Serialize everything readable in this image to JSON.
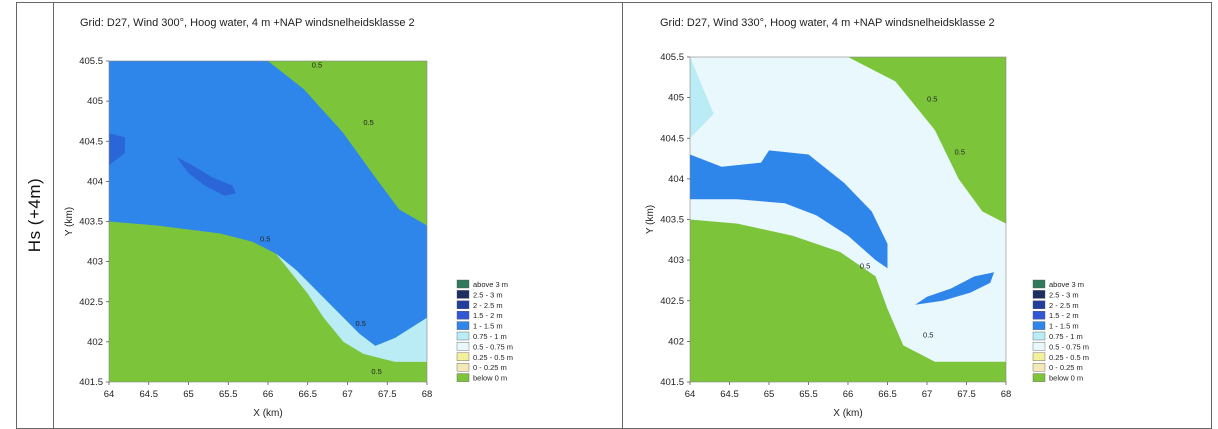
{
  "row_label": "Hs (+4m)",
  "legend_colors": [
    "#2e7a5a",
    "#1c2f5e",
    "#233f9e",
    "#2f57d6",
    "#2f86ea",
    "#b9ecf5",
    "#e9f8fc",
    "#f2f09a",
    "#f2e8b8",
    "#7cc53a"
  ],
  "legend_labels": [
    "above 3 m",
    "2.5 - 3 m",
    "2 - 2.5 m",
    "1.5 - 2 m",
    "1 - 1.5 m",
    "0.75 - 1 m",
    "0.5 - 0.75 m",
    "0.25 - 0.5 m",
    "0 - 0.25 m",
    "below 0 m"
  ],
  "chart_data": [
    {
      "type": "heatmap",
      "title": "Grid: D27, Wind 300°, Hoog water, 4 m +NAP windsnelheidsklasse 2",
      "xlabel": "X (km)",
      "ylabel": "Y (km)",
      "xlim": [
        64,
        68
      ],
      "ylim": [
        401.5,
        405.5
      ],
      "xticks": [
        "64",
        "64.5",
        "65",
        "65.5",
        "66",
        "66.5",
        "67",
        "67.5",
        "68"
      ],
      "yticks": [
        "401.5",
        "402",
        "402.5",
        "403",
        "403.5",
        "404",
        "404.5",
        "405",
        "405.5"
      ],
      "regions": [
        {
          "class": "1 - 1.5 m",
          "color": "#2f86ea",
          "points": [
            [
              64,
              405.5
            ],
            [
              66.0,
              405.5
            ],
            [
              66.45,
              405.15
            ],
            [
              66.95,
              404.6
            ],
            [
              67.35,
              404.05
            ],
            [
              67.65,
              403.65
            ],
            [
              68,
              403.45
            ],
            [
              68,
              402.3
            ],
            [
              67.6,
              402.05
            ],
            [
              67.35,
              401.95
            ],
            [
              67.15,
              402.1
            ],
            [
              67.0,
              402.25
            ],
            [
              66.6,
              402.65
            ],
            [
              66.35,
              402.9
            ],
            [
              66.1,
              403.1
            ],
            [
              65.8,
              403.25
            ],
            [
              65.4,
              403.35
            ],
            [
              65.0,
              403.4
            ],
            [
              64.6,
              403.45
            ],
            [
              64.0,
              403.5
            ]
          ]
        },
        {
          "class": "0.75 - 1 m",
          "color": "#b9ecf5",
          "points": [
            [
              66.1,
              403.1
            ],
            [
              66.35,
              402.9
            ],
            [
              66.6,
              402.65
            ],
            [
              67.0,
              402.25
            ],
            [
              67.15,
              402.1
            ],
            [
              67.35,
              401.95
            ],
            [
              67.6,
              402.05
            ],
            [
              68,
              402.3
            ],
            [
              68,
              401.75
            ],
            [
              67.6,
              401.75
            ],
            [
              67.2,
              401.85
            ],
            [
              66.95,
              402.0
            ],
            [
              66.7,
              402.3
            ],
            [
              66.5,
              402.6
            ]
          ]
        },
        {
          "class": "1.5 - 2 m",
          "color": "#2a66d8",
          "points": [
            [
              64.85,
              404.3
            ],
            [
              65.05,
              404.2
            ],
            [
              65.3,
              404.05
            ],
            [
              65.55,
              403.95
            ],
            [
              65.6,
              403.85
            ],
            [
              65.45,
              403.82
            ],
            [
              65.2,
              403.95
            ],
            [
              65.0,
              404.1
            ]
          ]
        },
        {
          "class": "1.5 - 2 m",
          "color": "#2a66d8",
          "points": [
            [
              64,
              404.6
            ],
            [
              64.2,
              404.55
            ],
            [
              64.2,
              404.35
            ],
            [
              64,
              404.2
            ]
          ]
        }
      ],
      "contour_labels": [
        {
          "text": "0.5",
          "x": 66.55,
          "y": 405.42
        },
        {
          "text": "0.5",
          "x": 67.2,
          "y": 404.7
        },
        {
          "text": "0.5",
          "x": 65.9,
          "y": 403.25
        },
        {
          "text": "0.5",
          "x": 67.1,
          "y": 402.2
        },
        {
          "text": "0.5",
          "x": 67.3,
          "y": 401.6
        }
      ]
    },
    {
      "type": "heatmap",
      "title": "Grid: D27, Wind 330°, Hoog water, 4 m +NAP windsnelheidsklasse 2",
      "xlabel": "X (km)",
      "ylabel": "Y (km)",
      "xlim": [
        64,
        68
      ],
      "ylim": [
        401.5,
        405.5
      ],
      "xticks": [
        "64",
        "64.5",
        "65",
        "65.5",
        "66",
        "66.5",
        "67",
        "67.5",
        "68"
      ],
      "yticks": [
        "401.5",
        "402",
        "402.5",
        "403",
        "403.5",
        "404",
        "404.5",
        "405",
        "405.5"
      ],
      "regions": [
        {
          "class": "0.5 - 0.75 m",
          "color": "#e9f8fc",
          "points": [
            [
              64,
              405.5
            ],
            [
              66.0,
              405.5
            ],
            [
              66.6,
              405.2
            ],
            [
              67.1,
              404.6
            ],
            [
              67.4,
              404.0
            ],
            [
              67.7,
              403.6
            ],
            [
              68,
              403.45
            ],
            [
              68,
              401.75
            ],
            [
              67.1,
              401.75
            ],
            [
              66.7,
              401.95
            ],
            [
              66.5,
              402.4
            ],
            [
              66.35,
              402.8
            ],
            [
              65.9,
              403.1
            ],
            [
              65.3,
              403.3
            ],
            [
              64.6,
              403.45
            ],
            [
              64.0,
              403.5
            ]
          ]
        },
        {
          "class": "0.75 - 1 m",
          "color": "#b9ecf5",
          "points": [
            [
              64.0,
              405.5
            ],
            [
              64.3,
              404.8
            ],
            [
              64.0,
              404.5
            ]
          ]
        },
        {
          "class": "1 - 1.5 m",
          "color": "#2f86ea",
          "points": [
            [
              64,
              404.3
            ],
            [
              64.4,
              404.15
            ],
            [
              64.9,
              404.2
            ],
            [
              65.0,
              404.35
            ],
            [
              65.5,
              404.3
            ],
            [
              65.95,
              403.95
            ],
            [
              66.3,
              403.6
            ],
            [
              66.5,
              403.2
            ],
            [
              66.5,
              402.9
            ],
            [
              66.35,
              403.0
            ],
            [
              66.0,
              403.3
            ],
            [
              65.6,
              403.55
            ],
            [
              65.2,
              403.7
            ],
            [
              64.6,
              403.75
            ],
            [
              64.0,
              403.75
            ]
          ]
        },
        {
          "class": "1 - 1.5 m",
          "color": "#2f86ea",
          "points": [
            [
              66.85,
              402.45
            ],
            [
              67.2,
              402.5
            ],
            [
              67.55,
              402.6
            ],
            [
              67.8,
              402.72
            ],
            [
              67.85,
              402.85
            ],
            [
              67.6,
              402.8
            ],
            [
              67.3,
              402.65
            ],
            [
              67.0,
              402.55
            ]
          ]
        }
      ],
      "contour_labels": [
        {
          "text": "0.5",
          "x": 67.0,
          "y": 404.95
        },
        {
          "text": "0.5",
          "x": 67.35,
          "y": 404.3
        },
        {
          "text": "0.5",
          "x": 66.15,
          "y": 402.9
        },
        {
          "text": "0.5",
          "x": 66.95,
          "y": 402.05
        }
      ]
    }
  ]
}
